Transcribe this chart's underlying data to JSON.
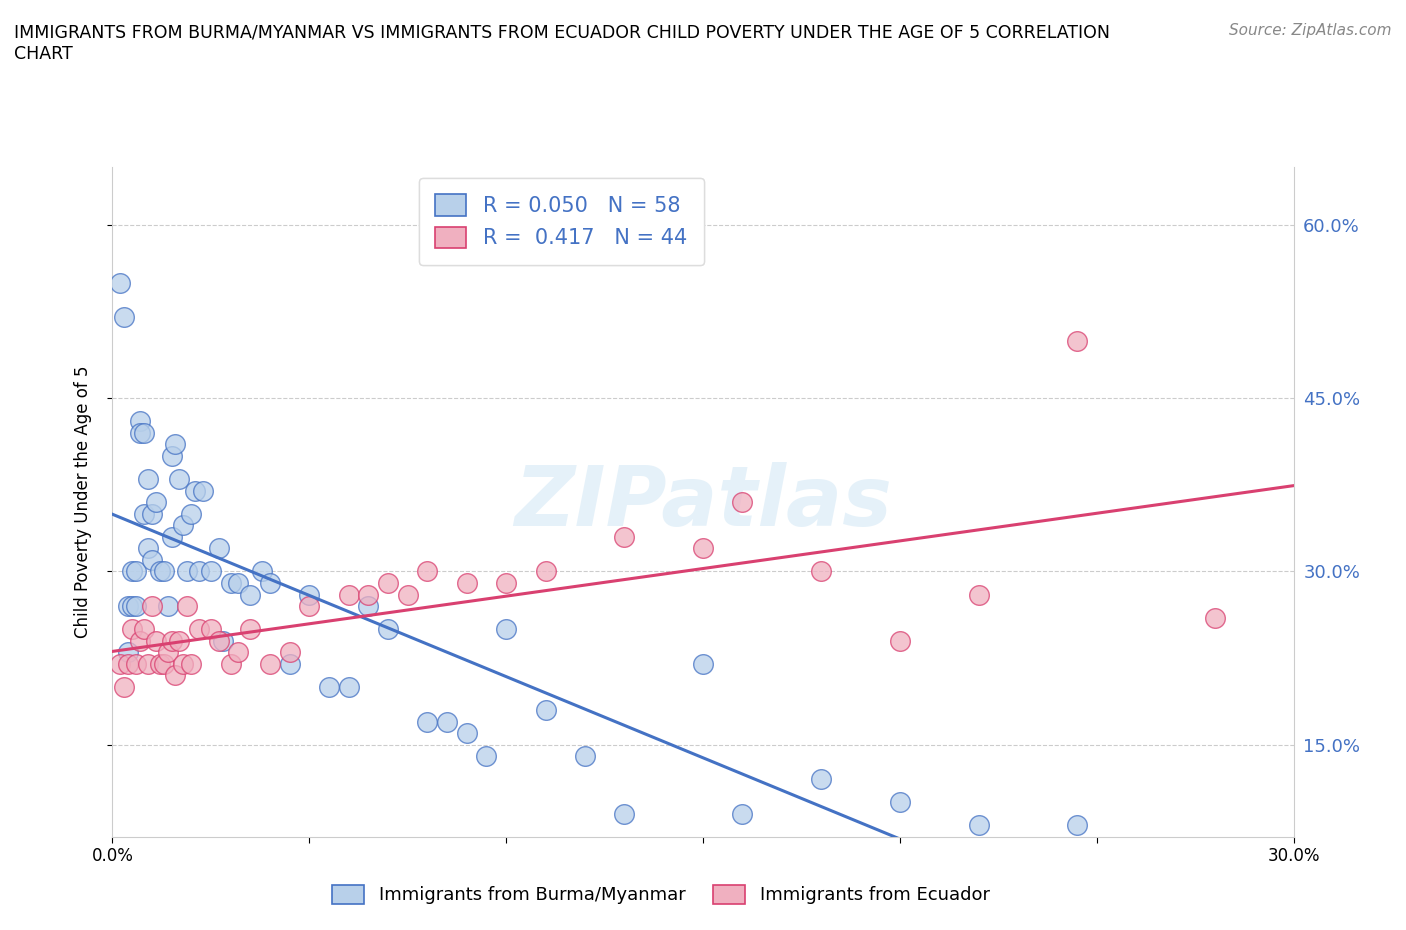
{
  "title_line1": "IMMIGRANTS FROM BURMA/MYANMAR VS IMMIGRANTS FROM ECUADOR CHILD POVERTY UNDER THE AGE OF 5 CORRELATION",
  "title_line2": "CHART",
  "source": "Source: ZipAtlas.com",
  "ylabel": "Child Poverty Under the Age of 5",
  "xlim": [
    0.0,
    0.3
  ],
  "ylim": [
    0.07,
    0.65
  ],
  "yticks": [
    0.15,
    0.3,
    0.45,
    0.6
  ],
  "ytick_labels": [
    "15.0%",
    "30.0%",
    "45.0%",
    "60.0%"
  ],
  "xticks": [
    0.0,
    0.05,
    0.1,
    0.15,
    0.2,
    0.25,
    0.3
  ],
  "xtick_labels": [
    "0.0%",
    "",
    "",
    "",
    "",
    "",
    "30.0%"
  ],
  "legend1_label": "Immigrants from Burma/Myanmar",
  "legend2_label": "Immigrants from Ecuador",
  "R1": 0.05,
  "N1": 58,
  "R2": 0.417,
  "N2": 44,
  "color1": "#b8d0ea",
  "color2": "#f0b0c0",
  "line_color1": "#4472c4",
  "line_color2": "#d94070",
  "tick_color": "#4472c4",
  "scatter1_x": [
    0.002,
    0.003,
    0.004,
    0.004,
    0.005,
    0.005,
    0.006,
    0.006,
    0.007,
    0.007,
    0.008,
    0.008,
    0.009,
    0.009,
    0.01,
    0.01,
    0.011,
    0.012,
    0.013,
    0.014,
    0.015,
    0.015,
    0.016,
    0.017,
    0.018,
    0.019,
    0.02,
    0.021,
    0.022,
    0.023,
    0.025,
    0.027,
    0.028,
    0.03,
    0.032,
    0.035,
    0.038,
    0.04,
    0.045,
    0.05,
    0.055,
    0.06,
    0.065,
    0.07,
    0.08,
    0.085,
    0.09,
    0.095,
    0.1,
    0.11,
    0.12,
    0.13,
    0.15,
    0.16,
    0.18,
    0.2,
    0.22,
    0.245
  ],
  "scatter1_y": [
    0.55,
    0.52,
    0.27,
    0.23,
    0.3,
    0.27,
    0.3,
    0.27,
    0.43,
    0.42,
    0.42,
    0.35,
    0.38,
    0.32,
    0.35,
    0.31,
    0.36,
    0.3,
    0.3,
    0.27,
    0.4,
    0.33,
    0.41,
    0.38,
    0.34,
    0.3,
    0.35,
    0.37,
    0.3,
    0.37,
    0.3,
    0.32,
    0.24,
    0.29,
    0.29,
    0.28,
    0.3,
    0.29,
    0.22,
    0.28,
    0.2,
    0.2,
    0.27,
    0.25,
    0.17,
    0.17,
    0.16,
    0.14,
    0.25,
    0.18,
    0.14,
    0.09,
    0.22,
    0.09,
    0.12,
    0.1,
    0.08,
    0.08
  ],
  "scatter2_x": [
    0.002,
    0.003,
    0.004,
    0.005,
    0.006,
    0.007,
    0.008,
    0.009,
    0.01,
    0.011,
    0.012,
    0.013,
    0.014,
    0.015,
    0.016,
    0.017,
    0.018,
    0.019,
    0.02,
    0.022,
    0.025,
    0.027,
    0.03,
    0.032,
    0.035,
    0.04,
    0.045,
    0.05,
    0.06,
    0.065,
    0.07,
    0.075,
    0.08,
    0.09,
    0.1,
    0.11,
    0.13,
    0.15,
    0.16,
    0.18,
    0.2,
    0.22,
    0.245,
    0.28
  ],
  "scatter2_y": [
    0.22,
    0.2,
    0.22,
    0.25,
    0.22,
    0.24,
    0.25,
    0.22,
    0.27,
    0.24,
    0.22,
    0.22,
    0.23,
    0.24,
    0.21,
    0.24,
    0.22,
    0.27,
    0.22,
    0.25,
    0.25,
    0.24,
    0.22,
    0.23,
    0.25,
    0.22,
    0.23,
    0.27,
    0.28,
    0.28,
    0.29,
    0.28,
    0.3,
    0.29,
    0.29,
    0.3,
    0.33,
    0.32,
    0.36,
    0.3,
    0.24,
    0.28,
    0.5,
    0.26
  ]
}
